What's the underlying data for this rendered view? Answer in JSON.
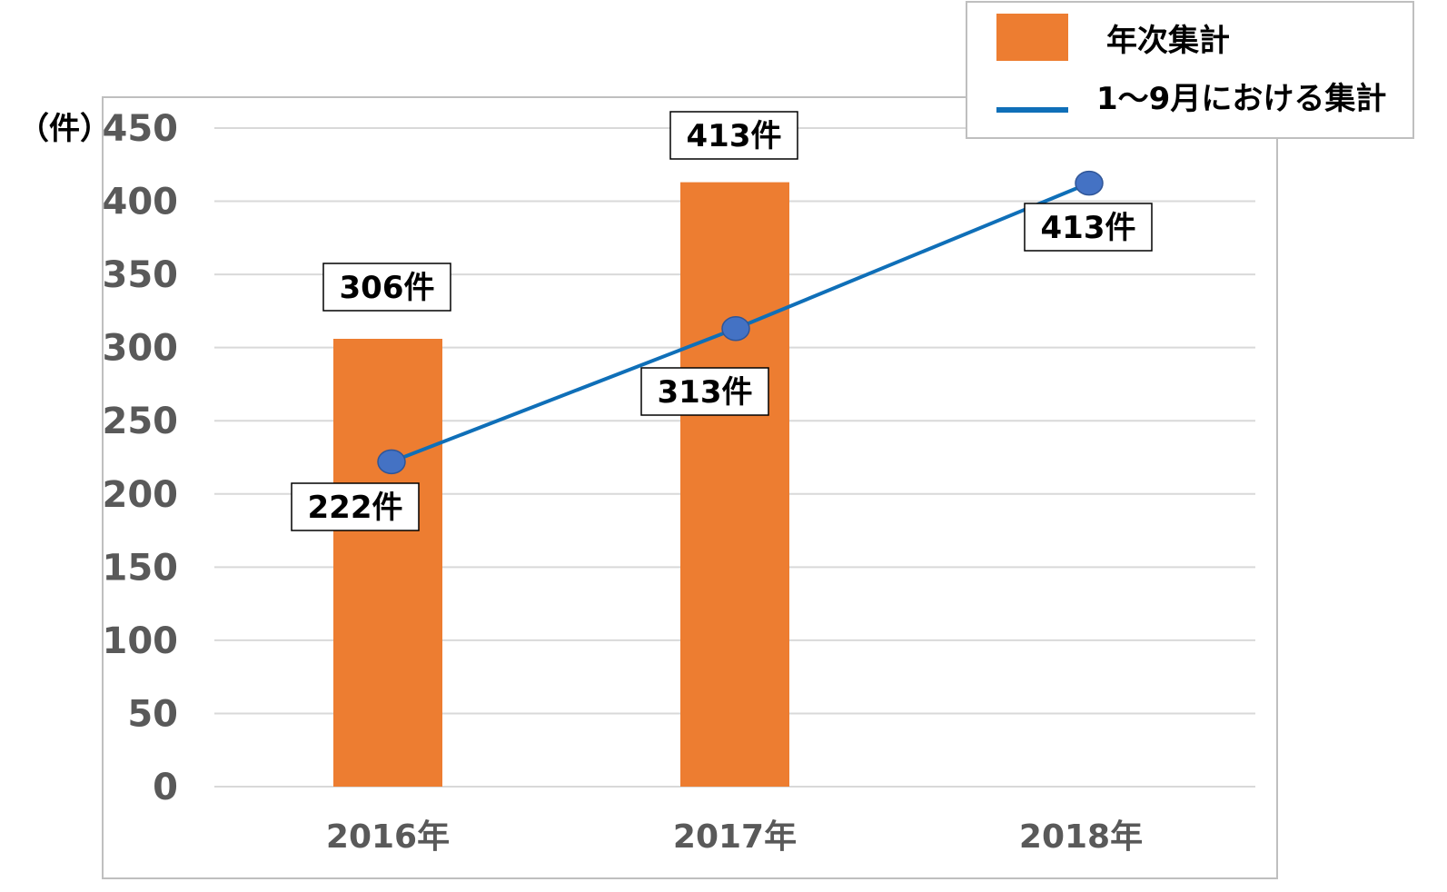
{
  "colors": {
    "bar": "#ED7D31",
    "line": "#0F6FB8",
    "marker": "#4472C4",
    "marker_stroke": "#2F5597",
    "grid": "#D9D9D9",
    "axis_text": "#595959",
    "frame": "#BFBFBF"
  },
  "chart_data": {
    "type": "bar",
    "categories": [
      "2016年",
      "2017年",
      "2018年"
    ],
    "ylim": [
      0,
      450
    ],
    "yticks": [
      0,
      50,
      100,
      150,
      200,
      250,
      300,
      350,
      400,
      450
    ],
    "ylabel": "（件）",
    "grid": true,
    "legend_position": "top-right",
    "series": [
      {
        "name": "年次集計",
        "type": "bar",
        "values": [
          306,
          413,
          null
        ],
        "labels": [
          "306件",
          "413件",
          ""
        ]
      },
      {
        "name": "1～9月における集計",
        "type": "line",
        "values": [
          222,
          313,
          413
        ],
        "labels": [
          "222件",
          "313件",
          "413件"
        ]
      }
    ]
  }
}
